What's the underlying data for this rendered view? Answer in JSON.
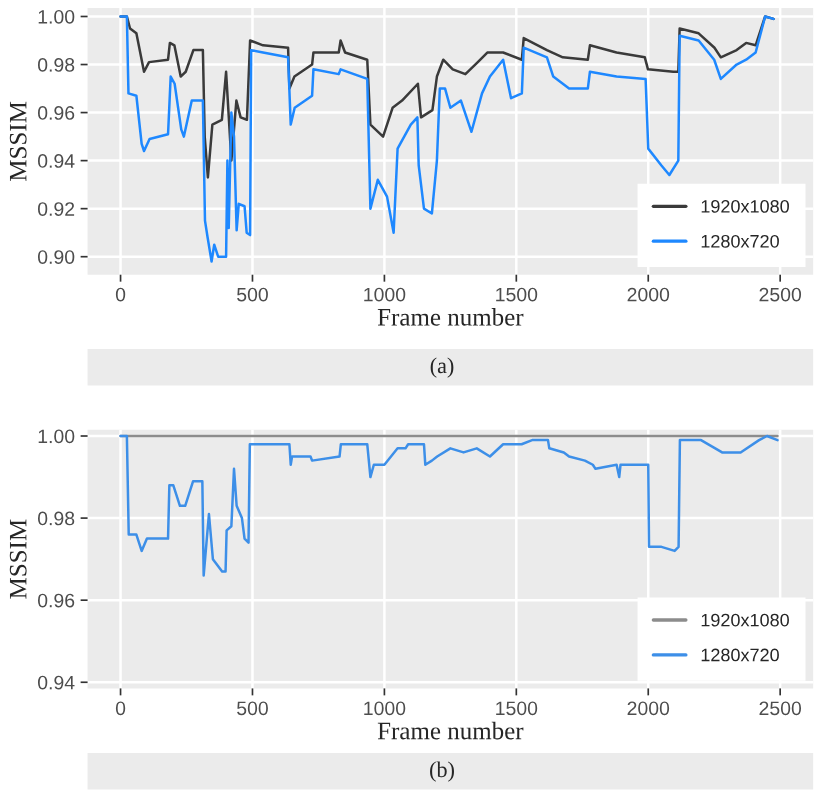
{
  "chart_data": [
    {
      "type": "line",
      "xlabel": "Frame number",
      "ylabel": "MSSIM",
      "xlim": [
        -125,
        2625
      ],
      "ylim": [
        0.8925,
        1.0035
      ],
      "xticks": [
        0,
        500,
        1000,
        1500,
        2000,
        2500
      ],
      "yticks": [
        {
          "value": 0.9,
          "label": "0.90"
        },
        {
          "value": 0.92,
          "label": "0.92"
        },
        {
          "value": 0.94,
          "label": "0.94"
        },
        {
          "value": 0.96,
          "label": "0.96"
        },
        {
          "value": 0.98,
          "label": "0.98"
        },
        {
          "value": 1.0,
          "label": "1.00"
        }
      ],
      "grid": true,
      "legend": "bottom right",
      "annotations": [
        "(a)"
      ],
      "series": [
        {
          "name": "1920x1080",
          "color": "#3a3a3a",
          "x": [
            0,
            24,
            36,
            60,
            89,
            108,
            180,
            187,
            204,
            228,
            247,
            276,
            312,
            319,
            331,
            348,
            384,
            400,
            420,
            439,
            455,
            479,
            491,
            540,
            635,
            640,
            659,
            726,
            731,
            827,
            834,
            851,
            935,
            947,
            995,
            1031,
            1067,
            1127,
            1139,
            1182,
            1199,
            1223,
            1259,
            1307,
            1354,
            1390,
            1450,
            1521,
            1528,
            1616,
            1676,
            1771,
            1779,
            1880,
            1987,
            1999,
            2095,
            2114,
            2119,
            2191,
            2251,
            2275,
            2335,
            2371,
            2407,
            2443,
            2475
          ],
          "values": [
            1.0,
            1.0,
            0.995,
            0.993,
            0.977,
            0.981,
            0.982,
            0.989,
            0.988,
            0.975,
            0.977,
            0.986,
            0.986,
            0.95,
            0.933,
            0.955,
            0.957,
            0.977,
            0.94,
            0.965,
            0.958,
            0.957,
            0.99,
            0.988,
            0.987,
            0.97,
            0.975,
            0.98,
            0.985,
            0.985,
            0.99,
            0.985,
            0.982,
            0.955,
            0.95,
            0.962,
            0.965,
            0.972,
            0.958,
            0.961,
            0.975,
            0.982,
            0.978,
            0.976,
            0.981,
            0.985,
            0.985,
            0.982,
            0.991,
            0.986,
            0.983,
            0.982,
            0.988,
            0.985,
            0.983,
            0.978,
            0.977,
            0.977,
            0.995,
            0.993,
            0.987,
            0.983,
            0.986,
            0.989,
            0.988,
            1.0,
            0.999
          ]
        },
        {
          "name": "1280x720",
          "color": "#1e88ff",
          "x": [
            0,
            24,
            30,
            60,
            80,
            89,
            110,
            180,
            190,
            205,
            230,
            240,
            270,
            312,
            320,
            330,
            345,
            355,
            370,
            400,
            405,
            410,
            420,
            430,
            440,
            448,
            470,
            478,
            491,
            495,
            540,
            635,
            645,
            660,
            726,
            731,
            827,
            834,
            935,
            947,
            975,
            1010,
            1035,
            1050,
            1100,
            1125,
            1130,
            1150,
            1180,
            1199,
            1210,
            1230,
            1250,
            1290,
            1330,
            1370,
            1400,
            1450,
            1480,
            1521,
            1528,
            1616,
            1640,
            1700,
            1771,
            1779,
            1880,
            1990,
            2000,
            2050,
            2080,
            2114,
            2119,
            2191,
            2250,
            2275,
            2335,
            2371,
            2407,
            2443,
            2475
          ],
          "values": [
            1.0,
            1.0,
            0.968,
            0.967,
            0.947,
            0.944,
            0.949,
            0.951,
            0.975,
            0.972,
            0.953,
            0.95,
            0.965,
            0.965,
            0.915,
            0.908,
            0.898,
            0.905,
            0.9,
            0.9,
            0.94,
            0.912,
            0.96,
            0.95,
            0.911,
            0.922,
            0.921,
            0.91,
            0.909,
            0.986,
            0.985,
            0.983,
            0.955,
            0.962,
            0.967,
            0.978,
            0.976,
            0.978,
            0.974,
            0.92,
            0.932,
            0.925,
            0.91,
            0.945,
            0.955,
            0.958,
            0.938,
            0.92,
            0.918,
            0.94,
            0.97,
            0.97,
            0.962,
            0.965,
            0.952,
            0.968,
            0.975,
            0.982,
            0.966,
            0.968,
            0.987,
            0.983,
            0.975,
            0.97,
            0.97,
            0.977,
            0.975,
            0.974,
            0.945,
            0.938,
            0.934,
            0.94,
            0.992,
            0.99,
            0.982,
            0.974,
            0.98,
            0.982,
            0.985,
            1.0,
            0.999
          ]
        }
      ]
    },
    {
      "type": "line",
      "xlabel": "Frame number",
      "ylabel": "MSSIM",
      "xlim": [
        -125,
        2625
      ],
      "ylim": [
        0.9385,
        1.0015
      ],
      "xticks": [
        0,
        500,
        1000,
        1500,
        2000,
        2500
      ],
      "yticks": [
        {
          "value": 0.94,
          "label": "0.94"
        },
        {
          "value": 0.96,
          "label": "0.96"
        },
        {
          "value": 0.98,
          "label": "0.98"
        },
        {
          "value": 1.0,
          "label": "1.00"
        }
      ],
      "grid": true,
      "legend": "bottom right",
      "annotations": [
        "(b)"
      ],
      "series": [
        {
          "name": "1920x1080",
          "color": "#8c8c8c",
          "x": [
            0,
            2490
          ],
          "values": [
            1.0,
            1.0
          ]
        },
        {
          "name": "1280x720",
          "color": "#3d8fe8",
          "x": [
            0,
            24,
            31,
            60,
            80,
            100,
            180,
            185,
            200,
            225,
            245,
            275,
            310,
            315,
            335,
            350,
            385,
            398,
            402,
            420,
            430,
            440,
            460,
            470,
            485,
            490,
            640,
            645,
            650,
            720,
            726,
            830,
            835,
            935,
            947,
            960,
            1000,
            1050,
            1080,
            1090,
            1150,
            1155,
            1180,
            1200,
            1250,
            1300,
            1350,
            1400,
            1450,
            1520,
            1560,
            1620,
            1625,
            1680,
            1700,
            1760,
            1790,
            1800,
            1880,
            1890,
            1895,
            2000,
            2003,
            2050,
            2100,
            2115,
            2120,
            2200,
            2280,
            2350,
            2420,
            2450,
            2490
          ],
          "values": [
            1.0,
            1.0,
            0.976,
            0.976,
            0.972,
            0.975,
            0.975,
            0.988,
            0.988,
            0.983,
            0.983,
            0.989,
            0.989,
            0.966,
            0.981,
            0.97,
            0.967,
            0.967,
            0.977,
            0.978,
            0.992,
            0.983,
            0.98,
            0.975,
            0.974,
            0.998,
            0.998,
            0.993,
            0.995,
            0.995,
            0.994,
            0.995,
            0.998,
            0.998,
            0.99,
            0.993,
            0.993,
            0.997,
            0.997,
            0.998,
            0.998,
            0.993,
            0.994,
            0.995,
            0.997,
            0.996,
            0.997,
            0.995,
            0.998,
            0.998,
            0.999,
            0.999,
            0.997,
            0.996,
            0.995,
            0.994,
            0.993,
            0.992,
            0.993,
            0.99,
            0.993,
            0.993,
            0.973,
            0.973,
            0.972,
            0.973,
            0.999,
            0.999,
            0.996,
            0.996,
            0.999,
            1.0,
            0.999
          ]
        }
      ]
    }
  ]
}
